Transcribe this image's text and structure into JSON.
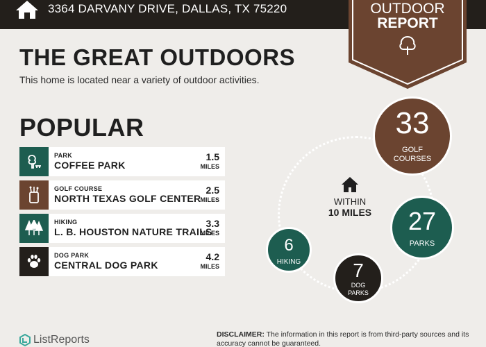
{
  "header": {
    "address": "3364 DARVANY DRIVE, DALLAS, TX 75220",
    "icon": "home-icon"
  },
  "badge": {
    "line1": "OUTDOOR",
    "line2": "REPORT",
    "icon": "tree-icon",
    "color": "#6b4430"
  },
  "main": {
    "title": "THE GREAT OUTDOORS",
    "subtitle": "This home is located near a variety of outdoor activities.",
    "popular_heading": "POPULAR"
  },
  "popular_items": [
    {
      "category": "PARK",
      "name": "COFFEE PARK",
      "distance": "1.5",
      "unit": "MILES",
      "icon": "park-icon",
      "color": "#1d5d50"
    },
    {
      "category": "GOLF COURSE",
      "name": "NORTH TEXAS GOLF CENTER",
      "distance": "2.5",
      "unit": "MILES",
      "icon": "golf-bag-icon",
      "color": "#6b4430"
    },
    {
      "category": "HIKING",
      "name": "L. B. HOUSTON NATURE TRAILS",
      "distance": "3.3",
      "unit": "MILES",
      "icon": "trees-icon",
      "color": "#1d5d50"
    },
    {
      "category": "DOG PARK",
      "name": "CENTRAL DOG PARK",
      "distance": "4.2",
      "unit": "MILES",
      "icon": "paw-icon",
      "color": "#231f1b"
    }
  ],
  "within": {
    "line1": "WITHIN",
    "line2": "10 MILES",
    "icon": "home-icon"
  },
  "stats": {
    "golf": {
      "count": "33",
      "label_1": "GOLF",
      "label_2": "COURSES",
      "color": "#6b4430"
    },
    "parks": {
      "count": "27",
      "label": "PARKS",
      "color": "#1d5d50"
    },
    "hiking": {
      "count": "6",
      "label": "HIKING",
      "color": "#1d5d50"
    },
    "dog": {
      "count": "7",
      "label_1": "DOG",
      "label_2": "PARKS",
      "color": "#231f1b"
    }
  },
  "footer": {
    "brand": "ListReports",
    "disclaimer_label": "DISCLAIMER:",
    "disclaimer_text": " The information in this report is from third-party sources and its accuracy cannot be guaranteed."
  }
}
